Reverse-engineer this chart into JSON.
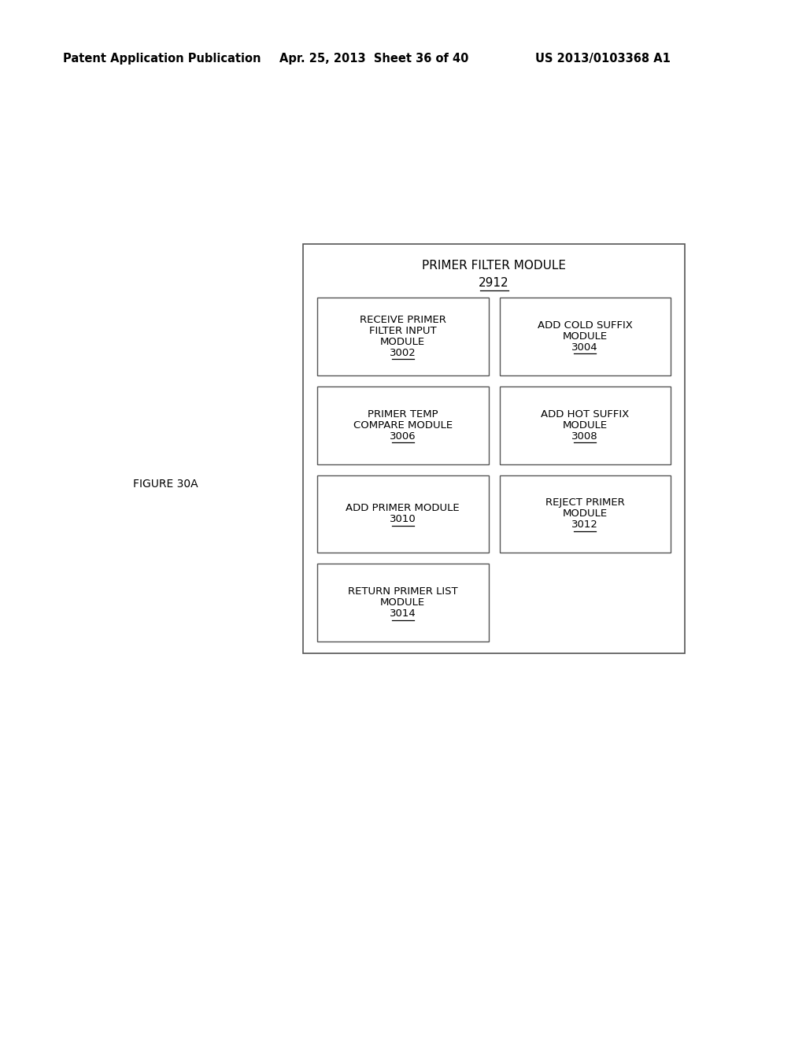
{
  "bg_color": "#ffffff",
  "header_left": "Patent Application Publication",
  "header_mid": "Apr. 25, 2013  Sheet 36 of 40",
  "header_right": "US 2013/0103368 A1",
  "figure_label": "FIGURE 30A",
  "title_text": "PRIMER FILTER MODULE",
  "title_num": "2912",
  "boxes": [
    {
      "lines": [
        "RECEIVE PRIMER",
        "FILTER INPUT",
        "MODULE"
      ],
      "num": "3002",
      "col": 0,
      "row": 0
    },
    {
      "lines": [
        "ADD COLD SUFFIX",
        "MODULE"
      ],
      "num": "3004",
      "col": 1,
      "row": 0
    },
    {
      "lines": [
        "PRIMER TEMP",
        "COMPARE MODULE"
      ],
      "num": "3006",
      "col": 0,
      "row": 1
    },
    {
      "lines": [
        "ADD HOT SUFFIX",
        "MODULE"
      ],
      "num": "3008",
      "col": 1,
      "row": 1
    },
    {
      "lines": [
        "ADD PRIMER MODULE"
      ],
      "num": "3010",
      "col": 0,
      "row": 2
    },
    {
      "lines": [
        "REJECT PRIMER",
        "MODULE"
      ],
      "num": "3012",
      "col": 1,
      "row": 2
    },
    {
      "lines": [
        "RETURN PRIMER LIST",
        "MODULE"
      ],
      "num": "3014",
      "col": 0,
      "row": 3
    }
  ]
}
